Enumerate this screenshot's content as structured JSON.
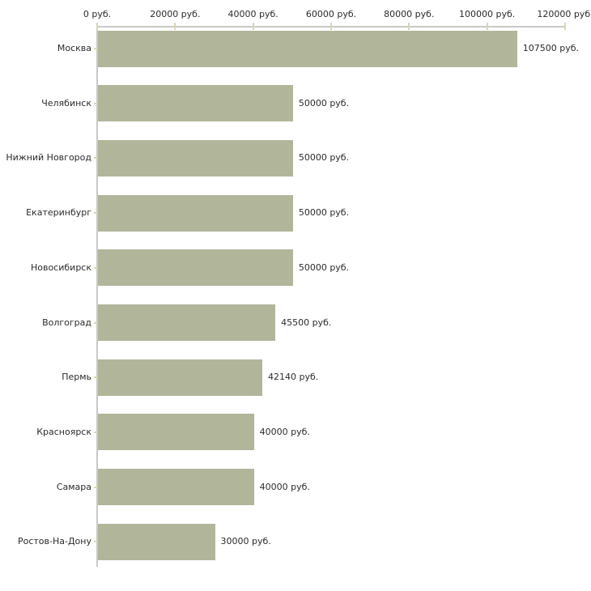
{
  "chart_data": {
    "type": "bar",
    "orientation": "horizontal",
    "title": "",
    "xlabel": "",
    "ylabel": "",
    "unit": "руб.",
    "categories": [
      "Москва",
      "Челябинск",
      "Нижний Новгород",
      "Екатеринбург",
      "Новосибирск",
      "Волгоград",
      "Пермь",
      "Красноярск",
      "Самара",
      "Ростов-На-Дону"
    ],
    "values": [
      107500,
      50000,
      50000,
      50000,
      50000,
      45500,
      42140,
      40000,
      40000,
      30000
    ],
    "value_labels": [
      "107500 руб.",
      "50000 руб.",
      "50000 руб.",
      "50000 руб.",
      "50000 руб.",
      "45500 руб.",
      "42140 руб.",
      "40000 руб.",
      "40000 руб.",
      "30000 руб."
    ],
    "x_tick_values": [
      0,
      20000,
      40000,
      60000,
      80000,
      100000,
      120000
    ],
    "x_tick_labels": [
      "0 руб.",
      "20000 руб.",
      "40000 руб.",
      "60000 руб.",
      "80000 руб.",
      "100000 руб.",
      "120000 руб."
    ],
    "xlim": [
      0,
      120000
    ],
    "grid": false,
    "legend": false,
    "colors": {
      "bar": "#b1b69b",
      "axis": "#c9c9c9",
      "tick": "#d9d5b2",
      "text": "#2b2b2b",
      "background": "#ffffff"
    }
  }
}
